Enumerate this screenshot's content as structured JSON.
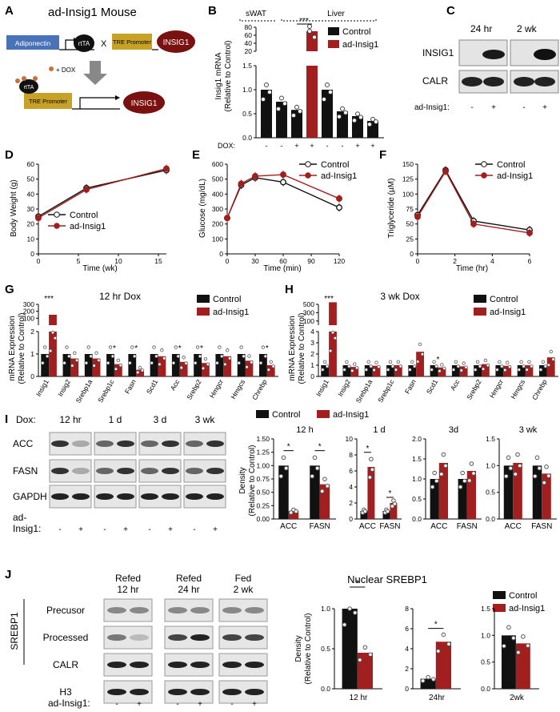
{
  "colors": {
    "control": "#111111",
    "adinsig": "#a11f1f",
    "adipo": "#4a72b8",
    "tre": "#c8a227",
    "insig": "#7a1111",
    "rtta": "#111111"
  },
  "panelA": {
    "letter": "A",
    "title": "ad-Insig1 Mouse",
    "adiponectin": "Adiponectin",
    "rtta": "rtTA",
    "cross": "X",
    "tre": "TRE Promoter",
    "insig": "INSIG1",
    "dox": "+ DOX"
  },
  "panelB": {
    "letter": "B",
    "ylabel": "Insig1 mRNA",
    "ylabel2": "(Relative to Control)",
    "group1": "sWAT",
    "group2": "Liver",
    "sig": "***",
    "dox_label": "DOX:",
    "dox": [
      "-",
      "-",
      "+",
      "+",
      "-",
      "-",
      "+",
      "+"
    ],
    "chart_data": {
      "type": "bar",
      "series": [
        {
          "name": "Control",
          "values": [
            1.0,
            0.75,
            0.58,
            null,
            1.0,
            0.55,
            0.45,
            0.35
          ]
        },
        {
          "name": "ad-Insig1",
          "values": [
            null,
            null,
            null,
            70,
            null,
            null,
            null,
            null
          ]
        }
      ],
      "ylim_low": [
        0,
        1.5
      ],
      "ylim_high": [
        20,
        80
      ],
      "yticks_low": [
        "0.0",
        "0.5",
        "1.0",
        "1.5"
      ],
      "yticks_high": [
        "20",
        "40",
        "60",
        "80"
      ]
    }
  },
  "panelC": {
    "letter": "C",
    "t1": "24 hr",
    "t2": "2 wk",
    "rows": [
      "INSIG1",
      "CALR"
    ],
    "geno_label": "ad-Insig1:",
    "geno": [
      "-",
      "+",
      "-",
      "+"
    ]
  },
  "legend": {
    "control": "Control",
    "adinsig": "ad-Insig1"
  },
  "panelD": {
    "letter": "D",
    "ylabel": "Body Weight (g)",
    "xlabel": "Time (wk)",
    "chart_data": {
      "type": "line",
      "x": [
        0,
        6,
        16
      ],
      "series": [
        {
          "name": "Control",
          "values": [
            25,
            44,
            56
          ]
        },
        {
          "name": "ad-Insig1",
          "values": [
            24,
            43,
            57
          ]
        }
      ],
      "xlim": [
        0,
        16
      ],
      "ylim": [
        0,
        60
      ],
      "xticks": [
        "0",
        "5",
        "10",
        "15"
      ],
      "yticks": [
        "0",
        "10",
        "20",
        "30",
        "40",
        "50",
        "60"
      ]
    }
  },
  "panelE": {
    "letter": "E",
    "ylabel": "Glucose (mg/dL)",
    "xlabel": "Time (min)",
    "chart_data": {
      "type": "line",
      "x": [
        0,
        15,
        30,
        60,
        120
      ],
      "series": [
        {
          "name": "Control",
          "values": [
            240,
            460,
            510,
            480,
            310
          ]
        },
        {
          "name": "ad-Insig1",
          "values": [
            240,
            470,
            520,
            530,
            370
          ]
        }
      ],
      "xlim": [
        0,
        120
      ],
      "ylim": [
        0,
        600
      ],
      "xticks": [
        "0",
        "30",
        "60",
        "90",
        "120"
      ],
      "yticks": [
        "0",
        "100",
        "200",
        "300",
        "400",
        "500",
        "600"
      ]
    }
  },
  "panelF": {
    "letter": "F",
    "ylabel": "Triglyceride (µM)",
    "xlabel": "Time (hr)",
    "chart_data": {
      "type": "line",
      "x": [
        0,
        1.5,
        3,
        6
      ],
      "series": [
        {
          "name": "Control",
          "values": [
            65,
            140,
            55,
            40
          ]
        },
        {
          "name": "ad-Insig1",
          "values": [
            62,
            138,
            50,
            35
          ]
        }
      ],
      "xlim": [
        0,
        6
      ],
      "ylim": [
        0,
        150
      ],
      "xticks": [
        "0",
        "2",
        "4",
        "6"
      ],
      "yticks": [
        "0",
        "25",
        "50",
        "75",
        "100",
        "125",
        "150"
      ]
    }
  },
  "panelG": {
    "letter": "G",
    "title": "12 hr Dox",
    "ylabel": "mRNA Expression",
    "ylabel2": "(Relative to Control)",
    "sig_top": "***",
    "chart_data": {
      "type": "bar",
      "categories": [
        "Insig1",
        "Insig2",
        "Srebp1a",
        "Srebp1c",
        "Fasn",
        "Scd1",
        "Acc",
        "Srebp2",
        "Hmgcr",
        "Hmgcs",
        "Chrebp"
      ],
      "series": [
        {
          "name": "Control",
          "values": [
            1.0,
            1.0,
            1.0,
            1.0,
            1.0,
            1.0,
            1.0,
            1.0,
            1.0,
            1.0,
            1.0
          ]
        },
        {
          "name": "ad-Insig1",
          "values": [
            150,
            0.8,
            0.8,
            0.55,
            0.3,
            0.9,
            0.65,
            0.6,
            0.9,
            0.7,
            0.5
          ]
        }
      ],
      "sig": [
        "",
        "",
        "",
        "*",
        "*",
        "",
        "*",
        "*",
        "",
        "",
        "*"
      ],
      "ylim_low": [
        0,
        2
      ],
      "yticks_low": [
        "0",
        "1",
        "2"
      ],
      "yticks_high": [
        "100",
        "200",
        "300"
      ]
    }
  },
  "panelH": {
    "letter": "H",
    "title": "3 wk Dox",
    "ylabel": "mRNA Expression",
    "ylabel2": "(Relative to Control)",
    "sig_top": "***",
    "chart_data": {
      "type": "bar",
      "categories": [
        "Insig1",
        "Insig2",
        "Srebp1a",
        "Srebp1c",
        "Fasn",
        "Scd1",
        "Acc",
        "Srebp2",
        "Hmgcr",
        "Hmgcs",
        "Chrebp"
      ],
      "series": [
        {
          "name": "Control",
          "values": [
            1.0,
            1.0,
            1.0,
            1.0,
            1.0,
            1.0,
            1.0,
            1.0,
            1.0,
            1.0,
            1.0
          ]
        },
        {
          "name": "ad-Insig1",
          "values": [
            550,
            0.85,
            0.95,
            1.0,
            2.2,
            0.8,
            0.9,
            1.1,
            0.95,
            1.0,
            1.7
          ]
        }
      ],
      "sig": [
        "",
        "",
        "",
        "",
        "",
        "*",
        "",
        "",
        "",
        "",
        ""
      ],
      "ylim_low": [
        0,
        4
      ],
      "yticks_low": [
        "0",
        "1",
        "2",
        "3",
        "4"
      ],
      "yticks_high": [
        "100",
        "300",
        "500"
      ]
    }
  },
  "panelI": {
    "letter": "I",
    "dox_label": "Dox:",
    "times": [
      "12 hr",
      "1 d",
      "3 d",
      "3 wk"
    ],
    "rows": [
      "ACC",
      "FASN",
      "GAPDH"
    ],
    "geno_label1": "ad-",
    "geno_label2": "Insig1:",
    "geno": [
      "-",
      "+",
      "-",
      "+",
      "-",
      "+",
      "-",
      "+"
    ],
    "ylabel": "Density",
    "ylabel2": "(Relative to Control)",
    "charts": [
      {
        "title": "12 h",
        "categories": [
          "ACC",
          "FASN"
        ],
        "control": [
          1.0,
          1.0
        ],
        "adinsig": [
          0.15,
          0.65
        ],
        "ylim": [
          0,
          1.5
        ],
        "yticks": [
          "0.00",
          "0.25",
          "0.50",
          "0.75",
          "1.00",
          "1.25",
          "1.50"
        ],
        "sig": [
          "*",
          "*"
        ]
      },
      {
        "title": "1 d",
        "categories": [
          "ACC",
          "FASN"
        ],
        "control": [
          1.0,
          1.0
        ],
        "adinsig": [
          6.5,
          2.0
        ],
        "ylim": [
          0,
          10
        ],
        "yticks": [
          "0",
          "2",
          "4",
          "6",
          "8",
          "10"
        ],
        "sig": [
          "*",
          "*"
        ]
      },
      {
        "title": "3d",
        "categories": [
          "ACC",
          "FASN"
        ],
        "control": [
          1.0,
          1.0
        ],
        "adinsig": [
          1.4,
          1.2
        ],
        "ylim": [
          0,
          2
        ],
        "yticks": [
          "0.0",
          "0.5",
          "1.0",
          "1.5",
          "2.0"
        ],
        "sig": [
          "",
          ""
        ]
      },
      {
        "title": "3 wk",
        "categories": [
          "ACC",
          "FASN"
        ],
        "control": [
          1.0,
          1.0
        ],
        "adinsig": [
          1.05,
          0.85
        ],
        "ylim": [
          0,
          1.5
        ],
        "yticks": [
          "0.0",
          "0.5",
          "1.0",
          "1.5"
        ],
        "sig": [
          "",
          ""
        ]
      }
    ]
  },
  "panelJ": {
    "letter": "J",
    "title": "Nuclear SREBP1",
    "side": "SREBP1",
    "cols": [
      [
        "Refed",
        "12 hr"
      ],
      [
        "Refed",
        "24 hr"
      ],
      [
        "Fed",
        "2 wk"
      ]
    ],
    "rows": [
      "Precusor",
      "Processed",
      "CALR",
      "H3"
    ],
    "geno_label": "ad-Insig1:",
    "geno": [
      "-",
      "+",
      "-",
      "+",
      "-",
      "+"
    ],
    "ylabel": "Density",
    "ylabel2": "(Relative to Control)",
    "charts": [
      {
        "xlabel": "12 hr",
        "control": 1.0,
        "adinsig": 0.45,
        "ylim": [
          0,
          1
        ],
        "yticks": [
          "0.0",
          "0.5",
          "1.0"
        ],
        "sig": "*"
      },
      {
        "xlabel": "24hr",
        "control": 1.0,
        "adinsig": 4.7,
        "ylim": [
          0,
          8
        ],
        "yticks": [
          "0",
          "2",
          "4",
          "6",
          "8"
        ],
        "sig": "*"
      },
      {
        "xlabel": "2wk",
        "control": 1.0,
        "adinsig": 0.85,
        "ylim": [
          0,
          1.5
        ],
        "yticks": [
          "0.0",
          "0.5",
          "1.0",
          "1.5"
        ],
        "sig": ""
      }
    ]
  }
}
